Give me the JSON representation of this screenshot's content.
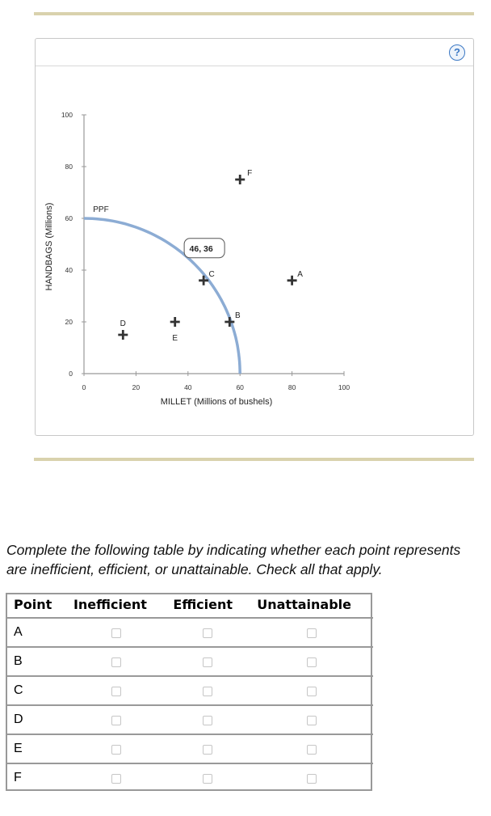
{
  "help_icon": "question-circle-icon",
  "chart_data": {
    "type": "scatter",
    "xlabel": "MILLET (Millions of bushels)",
    "ylabel": "HANDBAGS (Millions)",
    "xlim": [
      0,
      100
    ],
    "ylim": [
      0,
      100
    ],
    "xticks": [
      0,
      20,
      40,
      60,
      80,
      100
    ],
    "yticks": [
      0,
      20,
      40,
      60,
      80,
      100
    ],
    "grid": false,
    "curve": {
      "name": "PPF",
      "x_intercept": 60,
      "y_intercept": 60,
      "color": "#8cacd4"
    },
    "points": [
      {
        "label": "A",
        "x": 80,
        "y": 36
      },
      {
        "label": "B",
        "x": 56,
        "y": 20
      },
      {
        "label": "C",
        "x": 46,
        "y": 36
      },
      {
        "label": "D",
        "x": 15,
        "y": 15
      },
      {
        "label": "E",
        "x": 35,
        "y": 20
      },
      {
        "label": "F",
        "x": 60,
        "y": 75
      }
    ],
    "tooltip": "46, 36"
  },
  "prompt": {
    "line1": "Complete the following table by indicating whether each point represents",
    "line2": "are inefficient, efficient, or unattainable. Check all that apply."
  },
  "table": {
    "headers": [
      "Point",
      "Inefficient",
      "Efficient",
      "Unattainable"
    ],
    "rows": [
      {
        "point": "A",
        "checked": [
          false,
          false,
          false
        ]
      },
      {
        "point": "B",
        "checked": [
          false,
          false,
          false
        ]
      },
      {
        "point": "C",
        "checked": [
          false,
          false,
          false
        ]
      },
      {
        "point": "D",
        "checked": [
          false,
          false,
          false
        ]
      },
      {
        "point": "E",
        "checked": [
          false,
          false,
          false
        ]
      },
      {
        "point": "F",
        "checked": [
          false,
          false,
          false
        ]
      }
    ]
  }
}
